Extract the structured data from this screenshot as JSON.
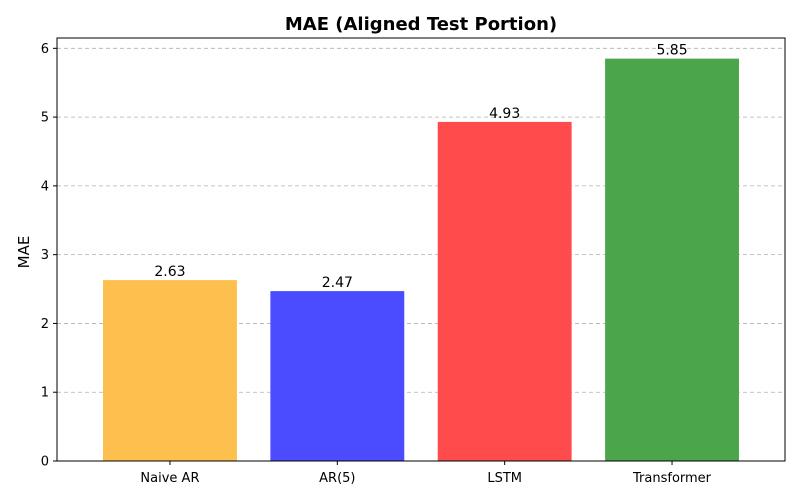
{
  "chart_data": {
    "type": "bar",
    "title": "MAE (Aligned Test Portion)",
    "xlabel": "",
    "ylabel": "MAE",
    "ylim": [
      0,
      6.15
    ],
    "yticks": [
      0,
      1,
      2,
      3,
      4,
      5,
      6
    ],
    "grid": "y, dashed",
    "categories": [
      "Naive AR",
      "AR(5)",
      "LSTM",
      "Transformer"
    ],
    "values": [
      2.63,
      2.47,
      4.93,
      5.85
    ],
    "value_labels": [
      "2.63",
      "2.47",
      "4.93",
      "5.85"
    ],
    "colors": [
      "#fdbf4d",
      "#4b4bff",
      "#ff4b4b",
      "#4ba64b"
    ]
  }
}
